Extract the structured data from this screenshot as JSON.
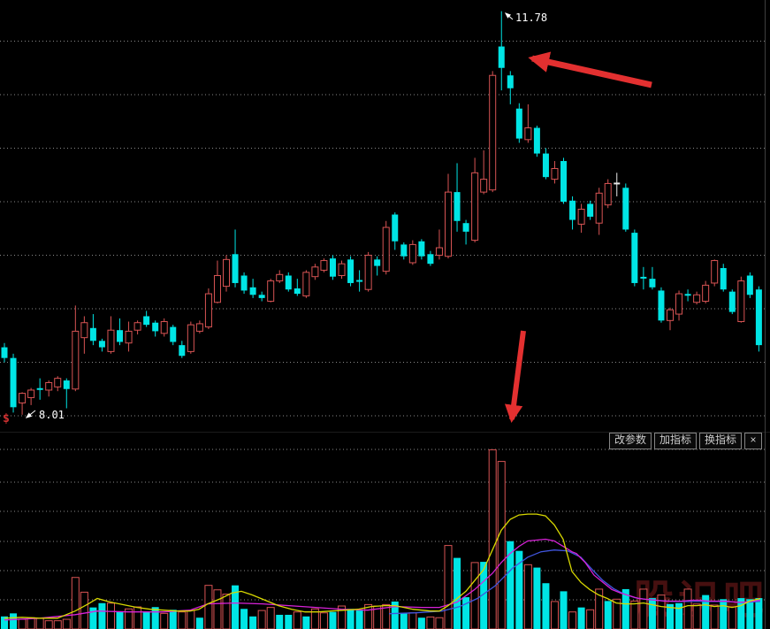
{
  "toolbar": {
    "buttons": [
      {
        "id": "change-params",
        "label": "改参数"
      },
      {
        "id": "add-indicator",
        "label": "加指标"
      },
      {
        "id": "switch-indicator",
        "label": "换指标"
      }
    ],
    "close_label": "×"
  },
  "annotations": {
    "peak_price_label": "11.78",
    "low_price_label": "8.01",
    "ex_rights_marker": "$"
  },
  "watermark": {
    "text": "股识吧"
  },
  "chart_data": {
    "type": "candlestick_with_volume",
    "title": "",
    "legend": [],
    "price_axis": {
      "labels_visible_on_chart": [
        "11.78",
        "8.01"
      ],
      "grid_prices": [
        8.0,
        8.5,
        9.0,
        9.5,
        10.0,
        10.5,
        11.0,
        11.5
      ],
      "high": 11.78,
      "low": 8.01,
      "grid_dotted": true
    },
    "colors": {
      "up": "#d85454",
      "down": "#00e5e5",
      "doji_white": "#e8e8e8",
      "annotation_arrow": "#e33030",
      "vol_ma5": "#d8d800",
      "vol_ma10": "#d822d8",
      "vol_ma20": "#4055dd",
      "background": "#000000"
    },
    "candles_format": [
      "open",
      "high",
      "low",
      "close",
      "dir(u=up-hollow-red,d=down-filled-cyan,c=cyan-doji,w=white-doji)"
    ],
    "candles": [
      [
        8.64,
        8.68,
        8.5,
        8.54,
        "d"
      ],
      [
        8.54,
        8.58,
        8.03,
        8.08,
        "d"
      ],
      [
        8.12,
        8.22,
        8.01,
        8.21,
        "u"
      ],
      [
        8.17,
        8.26,
        8.1,
        8.24,
        "u"
      ],
      [
        8.25,
        8.35,
        8.15,
        8.25,
        "c"
      ],
      [
        8.24,
        8.33,
        8.18,
        8.31,
        "u"
      ],
      [
        8.27,
        8.37,
        8.23,
        8.35,
        "u"
      ],
      [
        8.33,
        8.35,
        8.07,
        8.25,
        "d"
      ],
      [
        8.25,
        9.03,
        8.23,
        8.79,
        "u"
      ],
      [
        8.73,
        8.93,
        8.58,
        8.87,
        "u"
      ],
      [
        8.82,
        8.95,
        8.66,
        8.7,
        "d"
      ],
      [
        8.7,
        8.72,
        8.6,
        8.64,
        "d"
      ],
      [
        8.6,
        8.93,
        8.58,
        8.8,
        "u"
      ],
      [
        8.8,
        8.91,
        8.66,
        8.69,
        "d"
      ],
      [
        8.68,
        8.88,
        8.6,
        8.79,
        "u"
      ],
      [
        8.8,
        8.89,
        8.76,
        8.87,
        "u"
      ],
      [
        8.93,
        8.98,
        8.83,
        8.85,
        "d"
      ],
      [
        8.87,
        8.89,
        8.74,
        8.79,
        "d"
      ],
      [
        8.77,
        8.91,
        8.74,
        8.88,
        "u"
      ],
      [
        8.83,
        8.85,
        8.66,
        8.69,
        "d"
      ],
      [
        8.66,
        8.7,
        8.54,
        8.56,
        "d"
      ],
      [
        8.6,
        8.88,
        8.58,
        8.85,
        "u"
      ],
      [
        8.79,
        8.89,
        8.77,
        8.86,
        "u"
      ],
      [
        8.83,
        9.19,
        8.81,
        9.14,
        "u"
      ],
      [
        9.06,
        9.45,
        9.05,
        9.31,
        "u"
      ],
      [
        9.21,
        9.5,
        9.16,
        9.46,
        "u"
      ],
      [
        9.51,
        9.74,
        9.2,
        9.24,
        "d"
      ],
      [
        9.31,
        9.34,
        9.14,
        9.17,
        "d"
      ],
      [
        9.2,
        9.28,
        9.1,
        9.13,
        "d"
      ],
      [
        9.13,
        9.16,
        9.07,
        9.1,
        "d"
      ],
      [
        9.07,
        9.28,
        9.06,
        9.26,
        "u"
      ],
      [
        9.26,
        9.36,
        9.24,
        9.32,
        "u"
      ],
      [
        9.31,
        9.34,
        9.16,
        9.18,
        "d"
      ],
      [
        9.19,
        9.28,
        9.12,
        9.14,
        "d"
      ],
      [
        9.12,
        9.36,
        9.1,
        9.34,
        "u"
      ],
      [
        9.3,
        9.42,
        9.27,
        9.39,
        "u"
      ],
      [
        9.36,
        9.47,
        9.34,
        9.45,
        "u"
      ],
      [
        9.47,
        9.5,
        9.27,
        9.3,
        "d"
      ],
      [
        9.31,
        9.45,
        9.28,
        9.42,
        "u"
      ],
      [
        9.46,
        9.49,
        9.21,
        9.24,
        "d"
      ],
      [
        9.26,
        9.36,
        9.16,
        9.26,
        "c"
      ],
      [
        9.18,
        9.53,
        9.16,
        9.5,
        "u"
      ],
      [
        9.46,
        9.49,
        9.31,
        9.4,
        "d"
      ],
      [
        9.35,
        9.82,
        9.32,
        9.76,
        "u"
      ],
      [
        9.88,
        9.9,
        9.55,
        9.63,
        "d"
      ],
      [
        9.6,
        9.62,
        9.46,
        9.49,
        "d"
      ],
      [
        9.43,
        9.64,
        9.41,
        9.6,
        "u"
      ],
      [
        9.63,
        9.65,
        9.46,
        9.49,
        "d"
      ],
      [
        9.51,
        9.54,
        9.4,
        9.42,
        "d"
      ],
      [
        9.5,
        9.74,
        9.46,
        9.57,
        "u"
      ],
      [
        9.49,
        10.26,
        9.47,
        10.09,
        "u"
      ],
      [
        10.09,
        10.36,
        9.72,
        9.82,
        "d"
      ],
      [
        9.8,
        9.83,
        9.6,
        9.72,
        "d"
      ],
      [
        9.64,
        10.41,
        9.62,
        10.27,
        "u"
      ],
      [
        10.09,
        10.48,
        10.07,
        10.21,
        "u"
      ],
      [
        10.11,
        11.22,
        10.09,
        11.18,
        "u"
      ],
      [
        11.45,
        11.78,
        11.04,
        11.25,
        "d"
      ],
      [
        11.18,
        11.22,
        10.91,
        11.06,
        "d"
      ],
      [
        10.87,
        10.92,
        10.55,
        10.59,
        "d"
      ],
      [
        10.58,
        10.91,
        10.55,
        10.69,
        "u"
      ],
      [
        10.69,
        10.71,
        10.42,
        10.45,
        "d"
      ],
      [
        10.45,
        10.5,
        10.21,
        10.23,
        "d"
      ],
      [
        10.21,
        10.38,
        10.17,
        10.31,
        "u"
      ],
      [
        10.38,
        10.41,
        9.98,
        10.0,
        "d"
      ],
      [
        10.01,
        10.05,
        9.74,
        9.83,
        "d"
      ],
      [
        9.79,
        9.98,
        9.71,
        9.93,
        "u"
      ],
      [
        9.98,
        10.01,
        9.83,
        9.86,
        "d"
      ],
      [
        9.8,
        10.13,
        9.69,
        10.08,
        "u"
      ],
      [
        9.97,
        10.21,
        9.94,
        10.17,
        "u"
      ],
      [
        10.17,
        10.27,
        10.05,
        10.17,
        "w"
      ],
      [
        10.13,
        10.17,
        9.72,
        9.74,
        "d"
      ],
      [
        9.71,
        9.74,
        9.21,
        9.24,
        "d"
      ],
      [
        9.29,
        9.39,
        9.18,
        9.29,
        "c"
      ],
      [
        9.28,
        9.39,
        9.18,
        9.2,
        "d"
      ],
      [
        9.17,
        9.2,
        8.87,
        8.89,
        "d"
      ],
      [
        8.89,
        9.01,
        8.8,
        8.99,
        "u"
      ],
      [
        8.95,
        9.17,
        8.89,
        9.14,
        "u"
      ],
      [
        9.13,
        9.18,
        9.07,
        9.13,
        "c"
      ],
      [
        9.06,
        9.16,
        9.04,
        9.13,
        "u"
      ],
      [
        9.07,
        9.26,
        9.05,
        9.22,
        "u"
      ],
      [
        9.24,
        9.46,
        9.21,
        9.45,
        "u"
      ],
      [
        9.38,
        9.42,
        9.16,
        9.18,
        "d"
      ],
      [
        9.16,
        9.18,
        8.95,
        8.97,
        "d"
      ],
      [
        8.88,
        9.3,
        8.87,
        9.26,
        "u"
      ],
      [
        9.31,
        9.34,
        9.1,
        9.13,
        "d"
      ],
      [
        9.18,
        9.21,
        8.6,
        8.66,
        "d"
      ]
    ],
    "volume": {
      "unit": "percent_of_max_bar",
      "values": [
        7,
        8.7,
        5.4,
        6.3,
        5.9,
        4.6,
        4.6,
        5.4,
        28.7,
        20.5,
        12,
        14.4,
        14.4,
        9.5,
        11.2,
        12.3,
        9.5,
        12.2,
        8.7,
        10.7,
        9.5,
        10.3,
        6.3,
        24.3,
        21.8,
        19.4,
        24.3,
        11.2,
        7,
        10.3,
        12,
        7.9,
        7.9,
        9.5,
        7,
        11.2,
        9,
        9.5,
        12.8,
        11.2,
        10.3,
        13.6,
        12.8,
        13.6,
        15.3,
        9,
        9,
        6.3,
        6.7,
        6.3,
        46.5,
        39.6,
        17.7,
        37,
        37.4,
        99.8,
        93.3,
        48.9,
        43.5,
        35.8,
        34.2,
        25.5,
        15.3,
        21,
        9.5,
        12,
        10.7,
        22.2,
        15.6,
        16.6,
        22.2,
        15.6,
        22.2,
        17.2,
        18.9,
        13.9,
        14.4,
        22.2,
        13.9,
        18.9,
        13.3,
        16.6,
        12.3,
        17.2,
        16.6,
        17.2
      ],
      "colors": [
        "d",
        "d",
        "u",
        "u",
        "u",
        "u",
        "u",
        "u",
        "u",
        "u",
        "d",
        "d",
        "u",
        "d",
        "u",
        "u",
        "d",
        "d",
        "u",
        "d",
        "u",
        "u",
        "d",
        "u",
        "u",
        "u",
        "d",
        "d",
        "d",
        "u",
        "u",
        "d",
        "d",
        "u",
        "d",
        "u",
        "u",
        "d",
        "u",
        "d",
        "d",
        "u",
        "u",
        "u",
        "d",
        "d",
        "u",
        "d",
        "u",
        "u",
        "u",
        "d",
        "d",
        "u",
        "d",
        "u",
        "u",
        "d",
        "d",
        "u",
        "d",
        "d",
        "u",
        "d",
        "u",
        "d",
        "u",
        "u",
        "d",
        "u",
        "d",
        "u",
        "u",
        "d",
        "u",
        "d",
        "d",
        "u",
        "u",
        "d",
        "u",
        "d",
        "u",
        "d",
        "d",
        "d"
      ]
    },
    "volume_ma": {
      "ma5_yellow": [
        [
          5,
          6
        ],
        [
          25,
          6.5
        ],
        [
          45,
          6
        ],
        [
          65,
          6
        ],
        [
          85,
          10
        ],
        [
          100,
          14
        ],
        [
          110,
          17
        ],
        [
          125,
          15
        ],
        [
          140,
          13.5
        ],
        [
          155,
          12
        ],
        [
          170,
          11
        ],
        [
          185,
          10.5
        ],
        [
          200,
          10
        ],
        [
          215,
          10
        ],
        [
          225,
          11
        ],
        [
          235,
          14
        ],
        [
          250,
          17
        ],
        [
          262,
          20
        ],
        [
          273,
          21
        ],
        [
          285,
          19
        ],
        [
          300,
          16
        ],
        [
          315,
          13
        ],
        [
          330,
          11
        ],
        [
          345,
          9.5
        ],
        [
          360,
          9.5
        ],
        [
          375,
          10
        ],
        [
          390,
          10.5
        ],
        [
          405,
          11
        ],
        [
          420,
          12.5
        ],
        [
          435,
          13
        ],
        [
          447,
          13
        ],
        [
          457,
          12
        ],
        [
          467,
          11
        ],
        [
          477,
          10.5
        ],
        [
          487,
          10
        ],
        [
          497,
          10
        ],
        [
          507,
          13
        ],
        [
          517,
          17
        ],
        [
          527,
          21
        ],
        [
          537,
          27
        ],
        [
          547,
          33
        ],
        [
          557,
          44
        ],
        [
          567,
          55
        ],
        [
          577,
          61
        ],
        [
          587,
          63.5
        ],
        [
          597,
          64
        ],
        [
          607,
          64
        ],
        [
          617,
          63
        ],
        [
          627,
          58
        ],
        [
          637,
          50
        ],
        [
          647,
          32
        ],
        [
          657,
          26
        ],
        [
          667,
          22
        ],
        [
          677,
          19
        ],
        [
          687,
          17
        ],
        [
          697,
          14.5
        ],
        [
          707,
          14
        ],
        [
          717,
          14
        ],
        [
          728,
          14.5
        ],
        [
          738,
          13.5
        ],
        [
          748,
          12.5
        ],
        [
          758,
          12
        ],
        [
          768,
          11.5
        ],
        [
          778,
          13
        ],
        [
          788,
          13
        ],
        [
          798,
          13.5
        ],
        [
          808,
          12.5
        ],
        [
          818,
          13
        ],
        [
          828,
          12
        ],
        [
          838,
          13
        ],
        [
          848,
          15.5
        ],
        [
          860,
          17
        ]
      ],
      "ma10_magenta": [
        [
          5,
          5
        ],
        [
          45,
          6
        ],
        [
          85,
          8
        ],
        [
          110,
          10
        ],
        [
          145,
          9.5
        ],
        [
          185,
          9.5
        ],
        [
          215,
          10.5
        ],
        [
          235,
          14
        ],
        [
          266,
          14.5
        ],
        [
          297,
          14
        ],
        [
          327,
          13
        ],
        [
          357,
          12
        ],
        [
          386,
          11
        ],
        [
          416,
          10.5
        ],
        [
          447,
          12.5
        ],
        [
          477,
          12
        ],
        [
          497,
          12
        ],
        [
          517,
          15
        ],
        [
          537,
          22
        ],
        [
          557,
          31
        ],
        [
          567,
          37
        ],
        [
          577,
          42
        ],
        [
          587,
          46
        ],
        [
          597,
          49
        ],
        [
          607,
          49.5
        ],
        [
          617,
          50
        ],
        [
          627,
          49
        ],
        [
          637,
          46
        ],
        [
          647,
          43
        ],
        [
          652,
          42
        ],
        [
          662,
          37
        ],
        [
          672,
          30
        ],
        [
          682,
          26
        ],
        [
          692,
          22
        ],
        [
          702,
          20
        ],
        [
          712,
          18.5
        ],
        [
          722,
          17
        ],
        [
          732,
          16.5
        ],
        [
          742,
          16
        ],
        [
          752,
          15.5
        ],
        [
          762,
          15.5
        ],
        [
          772,
          15.5
        ],
        [
          782,
          16
        ],
        [
          792,
          16
        ],
        [
          802,
          15.5
        ],
        [
          812,
          15.5
        ],
        [
          822,
          15.5
        ],
        [
          832,
          15
        ],
        [
          842,
          15
        ],
        [
          852,
          15.5
        ],
        [
          860,
          16
        ]
      ],
      "ma20_blue": [
        [
          440,
          8.5
        ],
        [
          470,
          9
        ],
        [
          500,
          10
        ],
        [
          520,
          12.5
        ],
        [
          540,
          17
        ],
        [
          560,
          24
        ],
        [
          580,
          34
        ],
        [
          597,
          40
        ],
        [
          612,
          43
        ],
        [
          627,
          44
        ],
        [
          642,
          43.5
        ],
        [
          657,
          40
        ],
        [
          670,
          33
        ],
        [
          682,
          27
        ],
        [
          694,
          22.5
        ],
        [
          706,
          19.5
        ],
        [
          718,
          17.5
        ],
        [
          730,
          16.5
        ],
        [
          742,
          16
        ],
        [
          760,
          15.3
        ],
        [
          780,
          15.3
        ],
        [
          800,
          15.3
        ],
        [
          820,
          15.3
        ],
        [
          840,
          14.8
        ],
        [
          860,
          15.3
        ]
      ]
    }
  }
}
